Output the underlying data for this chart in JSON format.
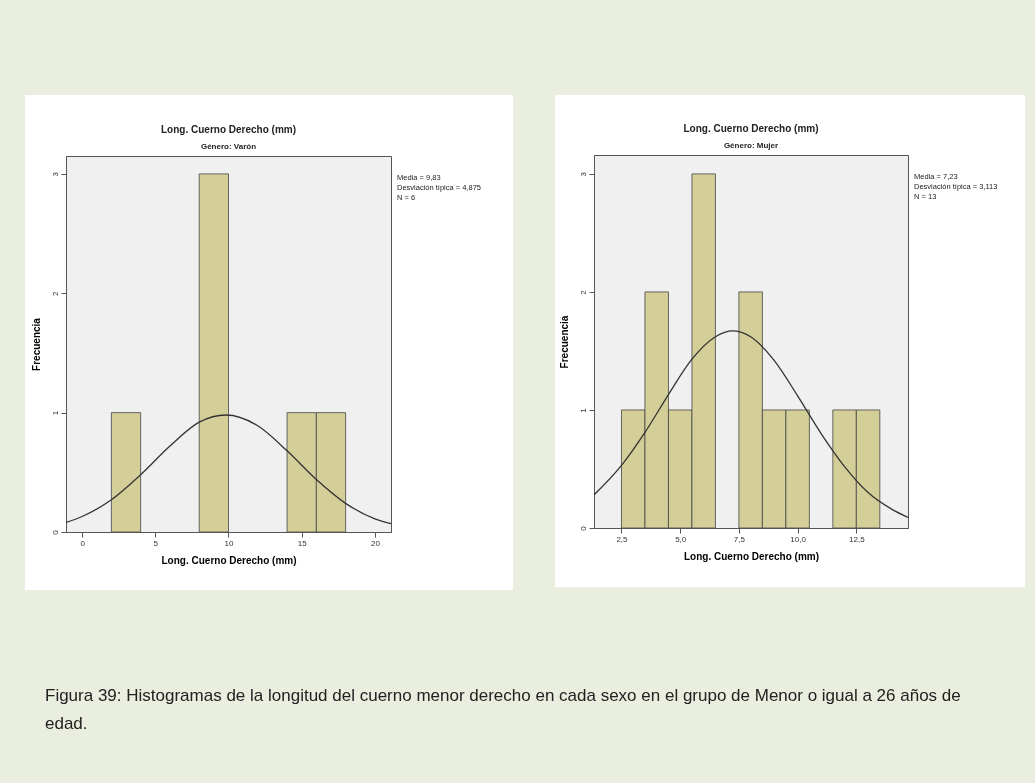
{
  "chart_data": [
    {
      "type": "histogram",
      "title": "Long. Cuerno Derecho (mm)",
      "subtitle": "Género: Varón",
      "xlabel": "Long. Cuerno Derecho (mm)",
      "ylabel": "Frecuencia",
      "bins": [
        2,
        4,
        6,
        8,
        10,
        12,
        14,
        16,
        18
      ],
      "series": [
        {
          "type": "histogram",
          "color": "#d4cf99",
          "values": [
            1,
            0,
            0,
            3,
            0,
            0,
            1,
            1
          ]
        },
        {
          "type": "line",
          "color": "#333333",
          "x": [
            -1.1,
            0,
            2,
            4,
            6,
            8,
            9.83,
            12,
            14,
            16,
            18,
            20,
            21.1
          ],
          "values": [
            0.08,
            0.13,
            0.27,
            0.48,
            0.72,
            0.92,
            0.98,
            0.89,
            0.68,
            0.44,
            0.24,
            0.11,
            0.07
          ]
        }
      ],
      "xlim": [
        -1.1,
        21.1
      ],
      "xticks": [
        0,
        5,
        10,
        15,
        20
      ],
      "ylim": [
        0,
        3.15
      ],
      "yticks": [
        0,
        1,
        2,
        3
      ],
      "annotations": [
        "Media = 9,83",
        "Desviación típica = 4,875",
        "N = 6"
      ]
    },
    {
      "type": "histogram",
      "title": "Long. Cuerno Derecho (mm)",
      "subtitle": "Género: Mujer",
      "xlabel": "Long. Cuerno Derecho (mm)",
      "ylabel": "Frecuencia",
      "bins": [
        2.5,
        3.5,
        4.5,
        5.5,
        6.5,
        7.5,
        8.5,
        9.5,
        10.5,
        11.5,
        12.5,
        13.5
      ],
      "series": [
        {
          "type": "histogram",
          "color": "#d4cf99",
          "values": [
            1,
            2,
            1,
            3,
            0,
            2,
            1,
            1,
            0,
            1,
            1
          ]
        },
        {
          "type": "line",
          "color": "#333333",
          "x": [
            1.33,
            2.5,
            3.5,
            4.5,
            5.5,
            6.5,
            7.23,
            8,
            9,
            10,
            11,
            12,
            13,
            14,
            14.7
          ],
          "values": [
            0.28,
            0.53,
            0.81,
            1.13,
            1.43,
            1.62,
            1.67,
            1.62,
            1.42,
            1.12,
            0.8,
            0.52,
            0.3,
            0.16,
            0.09
          ]
        }
      ],
      "xlim": [
        1.33,
        14.7
      ],
      "xticks": [
        {
          "value": 2.5,
          "label": "2,5"
        },
        {
          "value": 5,
          "label": "5,0"
        },
        {
          "value": 7.5,
          "label": "7,5"
        },
        {
          "value": 10,
          "label": "10,0"
        },
        {
          "value": 12.5,
          "label": "12,5"
        }
      ],
      "ylim": [
        0,
        3.16
      ],
      "yticks": [
        0,
        1,
        2,
        3
      ],
      "annotations": [
        "Media = 7,23",
        "Desviación típica = 3,113",
        "N = 13"
      ]
    },
    {
      "type": "other",
      "annotations": [
        "Figura 39: Histogramas de la longitud del cuerno menor derecho en cada sexo  en el grupo de Menor o igual a 26 años de edad."
      ]
    }
  ]
}
